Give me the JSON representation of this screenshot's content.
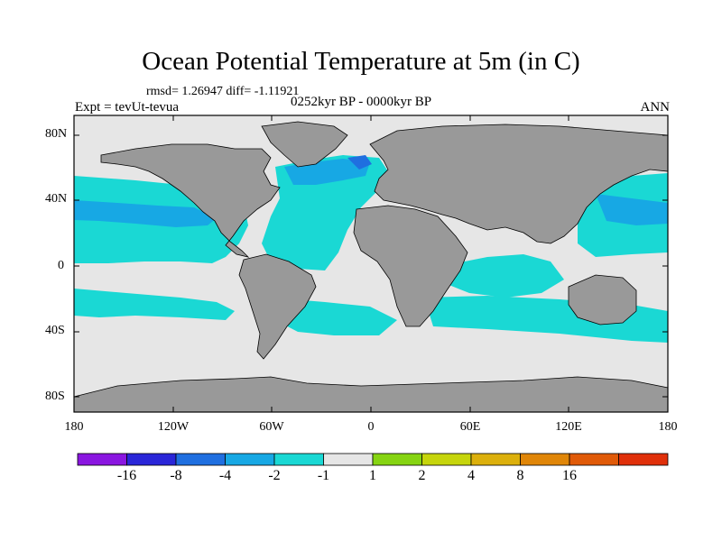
{
  "header": {
    "title": "Ocean Potential Temperature at 5m (in C)",
    "stats": "rmsd= 1.26947 diff= -1.11921",
    "experiment": "Expt = tevUt-tevua",
    "period": "0252kyr BP - 0000kyr BP",
    "season": "ANN"
  },
  "axes": {
    "y_labels": [
      "80N",
      "40N",
      "0",
      "40S",
      "80S"
    ],
    "x_labels": [
      "180",
      "120W",
      "60W",
      "0",
      "60E",
      "120E",
      "180"
    ]
  },
  "colorbar": {
    "colors": [
      "#8a16e0",
      "#2a26d8",
      "#1f6fe0",
      "#17a8e4",
      "#1ad8d4",
      "#e6e6e6",
      "#86d412",
      "#c6d50c",
      "#dcb00c",
      "#e08608",
      "#e05a08",
      "#e0300a"
    ],
    "labels": [
      "-16",
      "-8",
      "-4",
      "-2",
      "-1",
      "1",
      "2",
      "4",
      "8",
      "16"
    ]
  },
  "map_colors": {
    "land": "#999999",
    "neutral": "#e6e6e6",
    "cool1": "#1ad8d4",
    "cool2": "#17a8e4",
    "cool3": "#1f6fe0"
  }
}
